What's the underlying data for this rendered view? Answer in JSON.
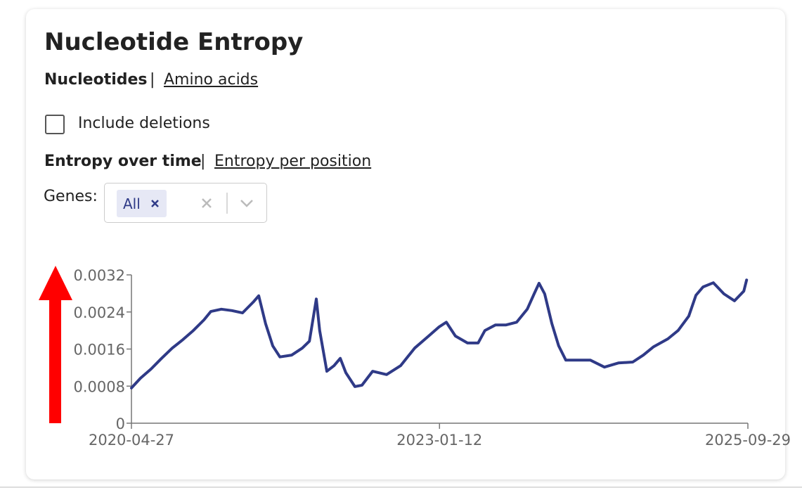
{
  "header": {
    "title": "Nucleotide Entropy"
  },
  "sequence_tabs": {
    "items": [
      "Nucleotides",
      "Amino acids"
    ],
    "separator": "|"
  },
  "include_deletions": {
    "label": "Include deletions",
    "checked": false
  },
  "view_tabs": {
    "items": [
      "Entropy over time",
      "Entropy per position"
    ],
    "separator": "|"
  },
  "genes": {
    "label": "Genes:",
    "selected": [
      "All"
    ]
  },
  "chart_data": {
    "type": "line",
    "x": [
      "2020-04-27",
      "2020-05-26",
      "2020-06-29",
      "2020-08-02",
      "2020-09-05",
      "2020-10-09",
      "2020-11-12",
      "2020-12-16",
      "2021-01-07",
      "2021-02-10",
      "2021-03-16",
      "2021-04-19",
      "2021-05-23",
      "2021-06-10",
      "2021-07-02",
      "2021-07-25",
      "2021-08-17",
      "2021-09-24",
      "2021-10-28",
      "2021-11-20",
      "2021-12-12",
      "2021-12-23",
      "2022-01-15",
      "2022-02-07",
      "2022-02-27",
      "2022-03-17",
      "2022-04-15",
      "2022-05-08",
      "2022-06-11",
      "2022-07-26",
      "2022-09-09",
      "2022-10-24",
      "2022-12-08",
      "2023-01-11",
      "2023-02-03",
      "2023-03-04",
      "2023-04-12",
      "2023-05-16",
      "2023-06-07",
      "2023-07-11",
      "2023-08-14",
      "2023-09-17",
      "2023-10-21",
      "2023-11-12",
      "2023-11-28",
      "2023-12-16",
      "2024-01-08",
      "2024-01-30",
      "2024-02-22",
      "2024-03-27",
      "2024-05-11",
      "2024-06-25",
      "2024-08-09",
      "2024-09-24",
      "2024-10-28",
      "2024-11-30",
      "2025-01-15",
      "2025-02-17",
      "2025-03-23",
      "2025-04-15",
      "2025-05-08",
      "2025-06-10",
      "2025-07-14",
      "2025-08-17",
      "2025-09-16",
      "2025-09-25"
    ],
    "series": [
      {
        "color": "#2f3a87",
        "values": [
          0.00076,
          0.00097,
          0.00117,
          0.0014,
          0.00162,
          0.0018,
          0.002,
          0.00223,
          0.00241,
          0.00246,
          0.00243,
          0.00238,
          0.00261,
          0.00275,
          0.00215,
          0.00167,
          0.00143,
          0.00147,
          0.00162,
          0.00177,
          0.00268,
          0.002,
          0.00112,
          0.00124,
          0.0014,
          0.00109,
          0.00079,
          0.00082,
          0.00112,
          0.00105,
          0.00124,
          0.00162,
          0.00188,
          0.00208,
          0.00218,
          0.00188,
          0.00173,
          0.00173,
          0.002,
          0.00212,
          0.00212,
          0.00218,
          0.00246,
          0.00279,
          0.00302,
          0.00279,
          0.00215,
          0.00167,
          0.00136,
          0.00136,
          0.00136,
          0.00121,
          0.0013,
          0.00132,
          0.00147,
          0.00165,
          0.00182,
          0.002,
          0.00231,
          0.00276,
          0.00294,
          0.00303,
          0.00279,
          0.00264,
          0.00285,
          0.00309
        ]
      }
    ],
    "xlim": [
      "2020-04-27",
      "2025-09-29"
    ],
    "xticks": [
      "2020-04-27",
      "2023-01-12",
      "2025-09-29"
    ],
    "ylim": [
      0,
      0.0032
    ],
    "yticks": [
      0,
      0.0008,
      0.0016,
      0.0024,
      0.0032
    ]
  }
}
